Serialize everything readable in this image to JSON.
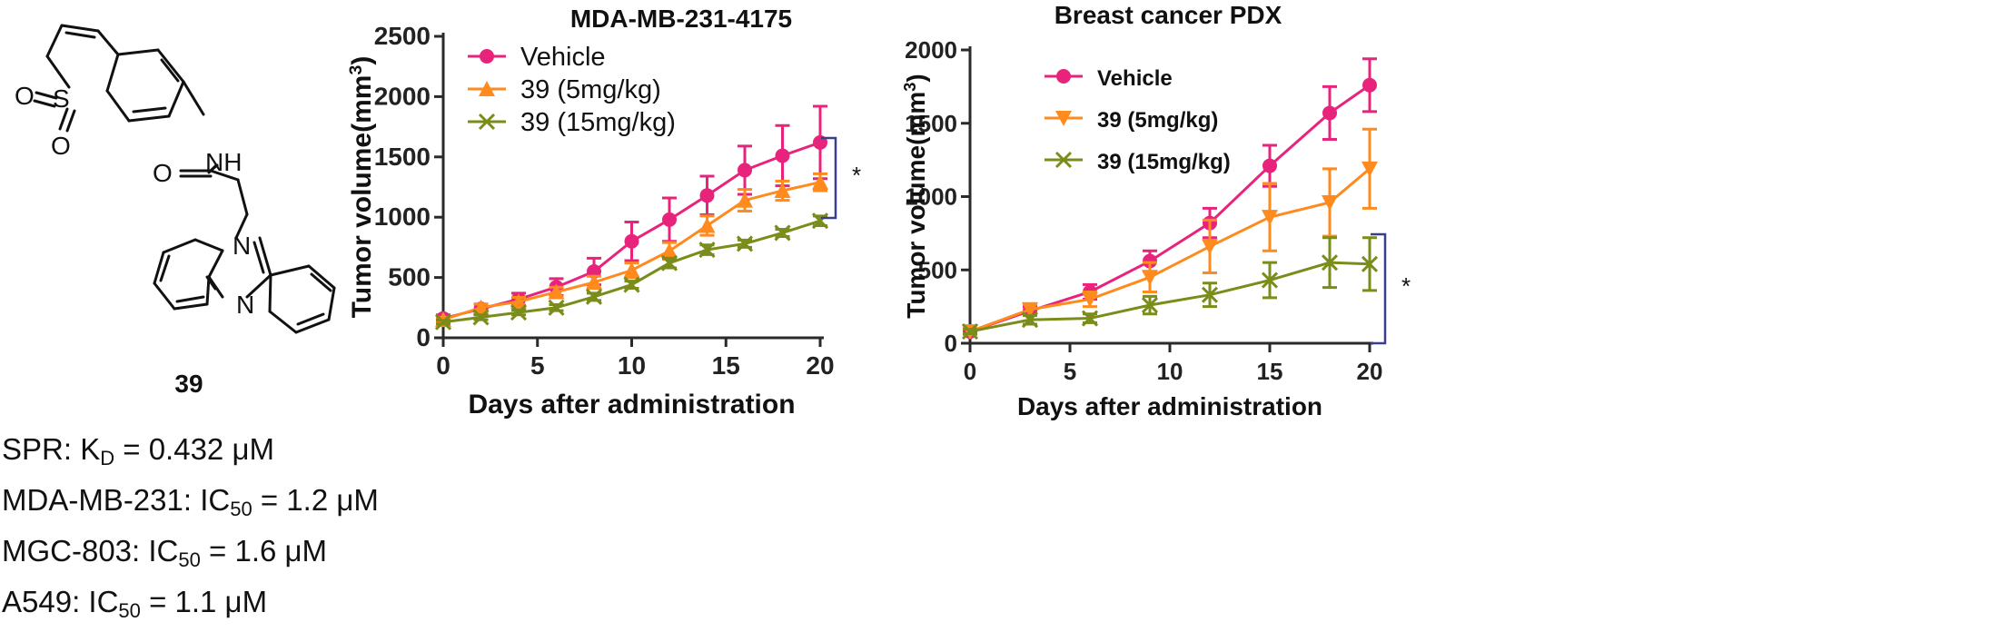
{
  "compound": {
    "label": "39",
    "atoms": {
      "s": "S",
      "o1": "O",
      "o2": "O",
      "o3": "O",
      "nh": "NH",
      "n1": "N",
      "n2": "N"
    },
    "properties": [
      {
        "prefix": "SPR: K",
        "sub": "D",
        "suffix": " = 0.432 μM"
      },
      {
        "prefix": "MDA-MB-231: IC",
        "sub": "50",
        "suffix": " = 1.2 μM"
      },
      {
        "prefix": "MGC-803: IC",
        "sub": "50",
        "suffix": " = 1.6 μM"
      },
      {
        "prefix": "A549: IC",
        "sub": "50",
        "suffix": " = 1.1 μM"
      }
    ]
  },
  "chart_data": [
    {
      "type": "line",
      "title": "MDA-MB-231-4175",
      "xlabel": "Days after administration",
      "ylabel_main": "Tumor volume(mm",
      "ylabel_sup": "3",
      "ylabel_end": ")",
      "xlim": [
        0,
        20
      ],
      "ylim": [
        0,
        2500
      ],
      "xticks": [
        0,
        5,
        10,
        15,
        20
      ],
      "yticks": [
        0,
        500,
        1000,
        1500,
        2000,
        2500
      ],
      "legend_position": "top-left",
      "significance": "*",
      "series": [
        {
          "name": "Vehicle",
          "color": "#E8237C",
          "marker": "circle",
          "x": [
            0,
            2,
            4,
            6,
            8,
            10,
            12,
            14,
            16,
            18,
            20
          ],
          "y": [
            160,
            240,
            320,
            420,
            550,
            800,
            980,
            1180,
            1390,
            1510,
            1620
          ],
          "err": [
            30,
            40,
            50,
            70,
            110,
            160,
            180,
            160,
            200,
            250,
            300
          ]
        },
        {
          "name": "39 (5mg/kg)",
          "color": "#FF8A1E",
          "marker": "triangle-up",
          "x": [
            0,
            2,
            4,
            6,
            8,
            10,
            12,
            14,
            16,
            18,
            20
          ],
          "y": [
            150,
            250,
            300,
            380,
            460,
            560,
            720,
            930,
            1140,
            1220,
            1290
          ],
          "err": [
            20,
            30,
            35,
            40,
            50,
            60,
            70,
            80,
            90,
            80,
            70
          ]
        },
        {
          "name": "39 (15mg/kg)",
          "color": "#7A8C1A",
          "marker": "x",
          "x": [
            0,
            2,
            4,
            6,
            8,
            10,
            12,
            14,
            16,
            18,
            20
          ],
          "y": [
            130,
            170,
            210,
            250,
            340,
            440,
            620,
            730,
            780,
            870,
            970
          ],
          "err": [
            15,
            20,
            20,
            25,
            30,
            30,
            40,
            40,
            30,
            30,
            40
          ]
        }
      ]
    },
    {
      "type": "line",
      "title": "Breast cancer PDX",
      "xlabel": "Days after administration",
      "ylabel_main": "Tumor volume(mm",
      "ylabel_sup": "3",
      "ylabel_end": ")",
      "xlim": [
        0,
        20
      ],
      "ylim": [
        0,
        2000
      ],
      "xticks": [
        0,
        5,
        10,
        15,
        20
      ],
      "yticks": [
        0,
        500,
        1000,
        1500,
        2000
      ],
      "legend_position": "top-left",
      "significance": "*",
      "series": [
        {
          "name": "Vehicle",
          "color": "#E8237C",
          "marker": "circle",
          "x": [
            0,
            3,
            6,
            9,
            12,
            15,
            18,
            20
          ],
          "y": [
            80,
            220,
            350,
            560,
            820,
            1210,
            1570,
            1760
          ],
          "err": [
            20,
            30,
            50,
            70,
            100,
            140,
            180,
            180
          ]
        },
        {
          "name": "39 (5mg/kg)",
          "color": "#FF8A1E",
          "marker": "triangle-down",
          "x": [
            0,
            3,
            6,
            9,
            12,
            15,
            18,
            20
          ],
          "y": [
            80,
            230,
            300,
            450,
            660,
            860,
            960,
            1190
          ],
          "err": [
            20,
            40,
            50,
            100,
            180,
            230,
            230,
            270
          ]
        },
        {
          "name": "39 (15mg/kg)",
          "color": "#7A8C1A",
          "marker": "x",
          "x": [
            0,
            3,
            6,
            9,
            12,
            15,
            18,
            20
          ],
          "y": [
            80,
            160,
            170,
            260,
            330,
            430,
            550,
            540
          ],
          "err": [
            15,
            30,
            30,
            60,
            80,
            120,
            170,
            180
          ]
        }
      ]
    }
  ]
}
